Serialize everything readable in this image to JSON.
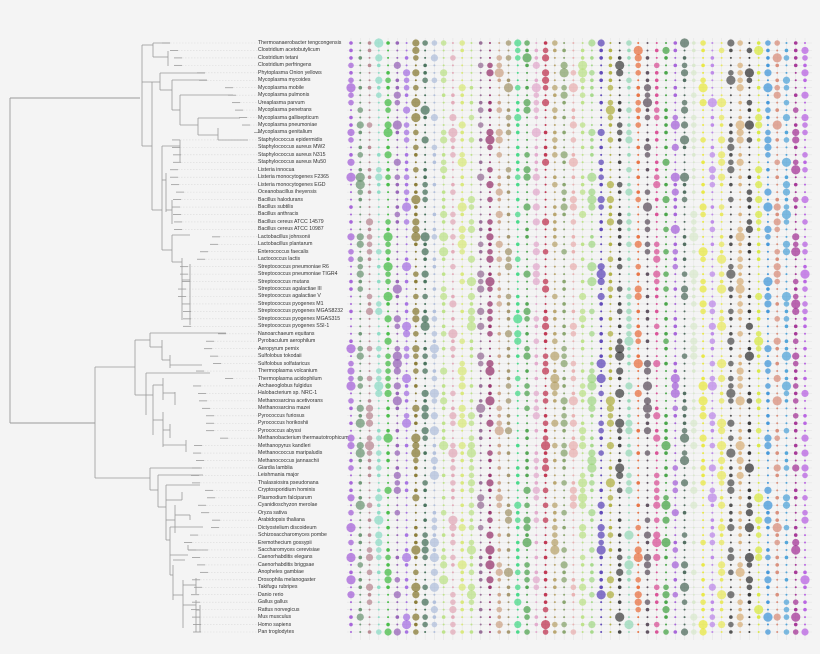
{
  "figure": {
    "type": "phylogenetic-tree-with-dot-matrix",
    "background": "#f4f4f4",
    "tree_color": "#9a9a9a",
    "grid_line_color": "#e2e2e2"
  },
  "species": [
    "Thermoanaerobacter tengcongensis",
    "Clostridium acetobutylicum",
    "Clostridium tetani",
    "Clostridium perfringens",
    "Phytoplasma Onion yellows",
    "Mycoplasma mycoides",
    "Mycoplasma mobile",
    "Mycoplasma pulmonis",
    "Ureaplasma parvum",
    "Mycoplasma penetrans",
    "Mycoplasma gallisepticum",
    "Mycoplasma pneumoniae",
    "Mycoplasma genitalium",
    "Staphylococcus epidermidis",
    "Staphylococcus aureus MW2",
    "Staphylococcus aureus N315",
    "Staphylococcus aureus Mu50",
    "Listeria innocua",
    "Listeria monocytogenes F2365",
    "Listeria monocytogenes EGD",
    "Oceanobacillus iheyensis",
    "Bacillus halodurans",
    "Bacillus subtilis",
    "Bacillus anthracis",
    "Bacillus cereus ATCC 14579",
    "Bacillus cereus ATCC 10987",
    "Lactobacillus johnsonii",
    "Lactobacillus plantarum",
    "Enterococcus faecalis",
    "Lactococcus lactis",
    "Streptococcus pneumoniae R6",
    "Streptococcus pneumoniae TIGR4",
    "Streptococcus mutans",
    "Streptococcus agalactiae III",
    "Streptococcus agalactiae V",
    "Streptococcus pyogenes M1",
    "Streptococcus pyogenes MGAS8232",
    "Streptococcus pyogenes MGAS315",
    "Streptococcus pyogenes SSI-1",
    "Nanoarchaeum equitans",
    "Pyrobaculum aerophilum",
    "Aeropyrum pernix",
    "Sulfolobus tokodaii",
    "Sulfolobus solfataricus",
    "Thermoplasma volcanium",
    "Thermoplasma acidophilum",
    "Archaeoglobus fulgidus",
    "Halobacterium sp. NRC-1",
    "Methanosarcina acetivorans",
    "Methanosarcina mazei",
    "Pyrococcus furiosus",
    "Pyrococcus horikoshii",
    "Pyrococcus abyssi",
    "Methanobacterium thermautotrophicum",
    "Methanopyrus kandleri",
    "Methanococcus maripaludis",
    "Methanococcus jannaschii",
    "Giardia lamblia",
    "Leishmania major",
    "Thalassiosira pseudonana",
    "Cryptosporidium hominis",
    "Plasmodium falciparum",
    "Cyanidioschyzon merolae",
    "Oryza sativa",
    "Arabidopsis thaliana",
    "Dictyostelium discoideum",
    "Schizosaccharomyces pombe",
    "Eremothecium gossypii",
    "Saccharomyces cerevisiae",
    "Caenorhabditis elegans",
    "Caenorhabditis briggsae",
    "Anopheles gambiae",
    "Drosophila melanogaster",
    "Takifugu rubripes",
    "Danio rerio",
    "Gallus gallus",
    "Rattus norvegicus",
    "Mus musculus",
    "Homo sapiens",
    "Pan troglodytes"
  ],
  "matrix": {
    "columns": 50,
    "column_colors": [
      "#9b4fd6",
      "#5a8a64",
      "#b07a85",
      "#7fd9c0",
      "#2fb52f",
      "#8a4fb0",
      "#9b5fe0",
      "#7a6a1a",
      "#2f5f45",
      "#a8b8d8",
      "#b6e07a",
      "#e0a0b0",
      "#d6e86a",
      "#b6e07a",
      "#8a5a8a",
      "#8a1a5a",
      "#c89a7a",
      "#9a8a5a",
      "#2fd67a",
      "#3a9a3a",
      "#e0a0c8",
      "#b81a3a",
      "#b09a5a",
      "#7a9a5a",
      "#e8a8a8",
      "#b6e07a",
      "#9ad67a",
      "#4a2fb0",
      "#a8a82a",
      "#2a2a2a",
      "#8ad6b0",
      "#e8602a",
      "#4a3a4a",
      "#d63a8a",
      "#2f9a2f",
      "#9b4fd6",
      "#3a5a4a",
      "#d6e8c8",
      "#e8e82a",
      "#b67ae8",
      "#e8e84a",
      "#3a3a3a",
      "#d6a86a",
      "#1a1a1a",
      "#d6e82a",
      "#2a8ad6",
      "#d6806a",
      "#3a9ad6",
      "#9a1a8a",
      "#b04fe0"
    ],
    "legend": "dot size encodes magnitude per species (row) and feature (column)"
  }
}
